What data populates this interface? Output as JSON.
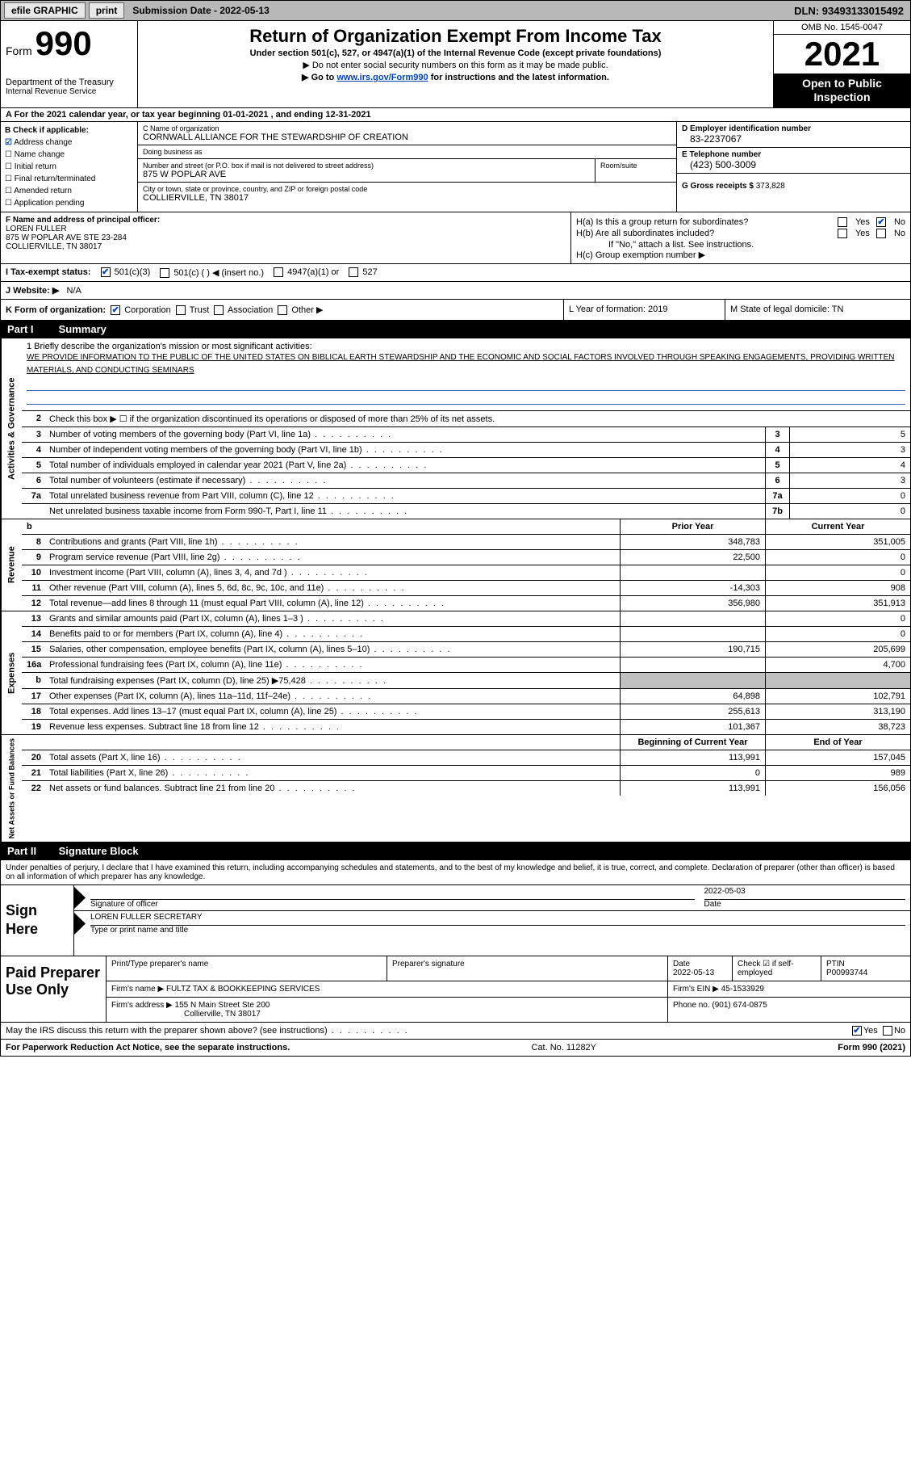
{
  "topbar": {
    "efile": "efile GRAPHIC",
    "print": "print",
    "subdate": "Submission Date - 2022-05-13",
    "dln": "DLN: 93493133015492"
  },
  "header": {
    "form_label": "Form",
    "form_num": "990",
    "dept": "Department of the Treasury",
    "irs": "Internal Revenue Service",
    "title": "Return of Organization Exempt From Income Tax",
    "sub1": "Under section 501(c), 527, or 4947(a)(1) of the Internal Revenue Code (except private foundations)",
    "sub2": "▶ Do not enter social security numbers on this form as it may be made public.",
    "sub3_pre": "▶ Go to ",
    "sub3_link": "www.irs.gov/Form990",
    "sub3_post": " for instructions and the latest information.",
    "omb": "OMB No. 1545-0047",
    "year": "2021",
    "otp": "Open to Public Inspection"
  },
  "rowA": "A For the 2021 calendar year, or tax year beginning 01-01-2021    , and ending 12-31-2021",
  "colB": {
    "head": "B Check if applicable:",
    "items": [
      "Address change",
      "Name change",
      "Initial return",
      "Final return/terminated",
      "Amended return",
      "Application pending"
    ],
    "checked_idx": 0
  },
  "colC": {
    "name_lbl": "C Name of organization",
    "name": "CORNWALL ALLIANCE FOR THE STEWARDSHIP OF CREATION",
    "dba_lbl": "Doing business as",
    "dba": "",
    "addr_lbl": "Number and street (or P.O. box if mail is not delivered to street address)",
    "room_lbl": "Room/suite",
    "addr": "875 W POPLAR AVE",
    "city_lbl": "City or town, state or province, country, and ZIP or foreign postal code",
    "city": "COLLIERVILLE, TN  38017"
  },
  "colD": {
    "ein_lbl": "D Employer identification number",
    "ein": "83-2237067",
    "phone_lbl": "E Telephone number",
    "phone": "(423) 500-3009",
    "gross_lbl": "G Gross receipts $",
    "gross": "373,828"
  },
  "rowF": {
    "lbl": "F Name and address of principal officer:",
    "name": "LOREN FULLER",
    "addr1": "875 W POPLAR AVE STE 23-284",
    "addr2": "COLLIERVILLE, TN  38017"
  },
  "rowH": {
    "h_a": "H(a)  Is this a group return for subordinates?",
    "h_b": "H(b)  Are all subordinates included?",
    "h_note": "If \"No,\" attach a list. See instructions.",
    "h_c": "H(c)  Group exemption number ▶",
    "yes": "Yes",
    "no": "No"
  },
  "rowI": {
    "lbl": "I    Tax-exempt status:",
    "o1": "501(c)(3)",
    "o2": "501(c) (  ) ◀ (insert no.)",
    "o3": "4947(a)(1) or",
    "o4": "527"
  },
  "rowJ": {
    "lbl": "J   Website: ▶",
    "val": "N/A"
  },
  "rowK": {
    "lbl": "K Form of organization:",
    "o1": "Corporation",
    "o2": "Trust",
    "o3": "Association",
    "o4": "Other ▶",
    "l": "L Year of formation: 2019",
    "m": "M State of legal domicile: TN"
  },
  "part1": {
    "num": "Part I",
    "title": "Summary"
  },
  "mission": {
    "lbl": "1  Briefly describe the organization's mission or most significant activities:",
    "txt": "WE PROVIDE INFORMATION TO THE PUBLIC OF THE UNITED STATES ON BIBLICAL EARTH STEWARDSHIP AND THE ECONOMIC AND SOCIAL FACTORS INVOLVED THROUGH SPEAKING ENGAGEMENTS, PROVIDING WRITTEN MATERIALS, AND CONDUCTING SEMINARS"
  },
  "gov_lines": [
    {
      "n": "2",
      "d": "Check this box ▶ ☐ if the organization discontinued its operations or disposed of more than 25% of its net assets."
    },
    {
      "n": "3",
      "d": "Number of voting members of the governing body (Part VI, line 1a)",
      "box": "3",
      "v": "5"
    },
    {
      "n": "4",
      "d": "Number of independent voting members of the governing body (Part VI, line 1b)",
      "box": "4",
      "v": "3"
    },
    {
      "n": "5",
      "d": "Total number of individuals employed in calendar year 2021 (Part V, line 2a)",
      "box": "5",
      "v": "4"
    },
    {
      "n": "6",
      "d": "Total number of volunteers (estimate if necessary)",
      "box": "6",
      "v": "3"
    },
    {
      "n": "7a",
      "d": "Total unrelated business revenue from Part VIII, column (C), line 12",
      "box": "7a",
      "v": "0"
    },
    {
      "n": "",
      "d": "Net unrelated business taxable income from Form 990-T, Part I, line 11",
      "box": "7b",
      "v": "0"
    }
  ],
  "section_labels": {
    "gov": "Activities & Governance",
    "rev": "Revenue",
    "exp": "Expenses",
    "net": "Net Assets or Fund Balances",
    "b_head": "b",
    "prior": "Prior Year",
    "current": "Current Year",
    "begin": "Beginning of Current Year",
    "end": "End of Year"
  },
  "rev_lines": [
    {
      "n": "8",
      "d": "Contributions and grants (Part VIII, line 1h)",
      "p": "348,783",
      "c": "351,005"
    },
    {
      "n": "9",
      "d": "Program service revenue (Part VIII, line 2g)",
      "p": "22,500",
      "c": "0"
    },
    {
      "n": "10",
      "d": "Investment income (Part VIII, column (A), lines 3, 4, and 7d )",
      "p": "",
      "c": "0"
    },
    {
      "n": "11",
      "d": "Other revenue (Part VIII, column (A), lines 5, 6d, 8c, 9c, 10c, and 11e)",
      "p": "-14,303",
      "c": "908"
    },
    {
      "n": "12",
      "d": "Total revenue—add lines 8 through 11 (must equal Part VIII, column (A), line 12)",
      "p": "356,980",
      "c": "351,913"
    }
  ],
  "exp_lines": [
    {
      "n": "13",
      "d": "Grants and similar amounts paid (Part IX, column (A), lines 1–3 )",
      "p": "",
      "c": "0"
    },
    {
      "n": "14",
      "d": "Benefits paid to or for members (Part IX, column (A), line 4)",
      "p": "",
      "c": "0"
    },
    {
      "n": "15",
      "d": "Salaries, other compensation, employee benefits (Part IX, column (A), lines 5–10)",
      "p": "190,715",
      "c": "205,699"
    },
    {
      "n": "16a",
      "d": "Professional fundraising fees (Part IX, column (A), line 11e)",
      "p": "",
      "c": "4,700"
    },
    {
      "n": "b",
      "d": "Total fundraising expenses (Part IX, column (D), line 25) ▶75,428",
      "p": "shade",
      "c": "shade"
    },
    {
      "n": "17",
      "d": "Other expenses (Part IX, column (A), lines 11a–11d, 11f–24e)",
      "p": "64,898",
      "c": "102,791"
    },
    {
      "n": "18",
      "d": "Total expenses. Add lines 13–17 (must equal Part IX, column (A), line 25)",
      "p": "255,613",
      "c": "313,190"
    },
    {
      "n": "19",
      "d": "Revenue less expenses. Subtract line 18 from line 12",
      "p": "101,367",
      "c": "38,723"
    }
  ],
  "net_lines": [
    {
      "n": "20",
      "d": "Total assets (Part X, line 16)",
      "p": "113,991",
      "c": "157,045"
    },
    {
      "n": "21",
      "d": "Total liabilities (Part X, line 26)",
      "p": "0",
      "c": "989"
    },
    {
      "n": "22",
      "d": "Net assets or fund balances. Subtract line 21 from line 20",
      "p": "113,991",
      "c": "156,056"
    }
  ],
  "part2": {
    "num": "Part II",
    "title": "Signature Block"
  },
  "penalties": "Under penalties of perjury, I declare that I have examined this return, including accompanying schedules and statements, and to the best of my knowledge and belief, it is true, correct, and complete. Declaration of preparer (other than officer) is based on all information of which preparer has any knowledge.",
  "sign": {
    "here": "Sign Here",
    "sig_lbl": "Signature of officer",
    "date": "2022-05-03",
    "date_lbl": "Date",
    "name": "LOREN FULLER  SECRETARY",
    "name_lbl": "Type or print name and title"
  },
  "paid": {
    "here": "Paid Preparer Use Only",
    "pname_lbl": "Print/Type preparer's name",
    "psig_lbl": "Preparer's signature",
    "pdate_lbl": "Date",
    "pdate": "2022-05-13",
    "pcheck_lbl": "Check ☑ if self-employed",
    "ptin_lbl": "PTIN",
    "ptin": "P00993744",
    "firm_lbl": "Firm's name    ▶",
    "firm": "FULTZ TAX & BOOKKEEPING SERVICES",
    "fein_lbl": "Firm's EIN ▶",
    "fein": "45-1533929",
    "faddr_lbl": "Firm's address ▶",
    "faddr1": "155 N Main Street Ste 200",
    "faddr2": "Collierville, TN  38017",
    "fphone_lbl": "Phone no.",
    "fphone": "(901) 674-0875"
  },
  "discuss": {
    "q": "May the IRS discuss this return with the preparer shown above? (see instructions)",
    "yes": "Yes",
    "no": "No"
  },
  "footer": {
    "l": "For Paperwork Reduction Act Notice, see the separate instructions.",
    "c": "Cat. No. 11282Y",
    "r": "Form 990 (2021)"
  }
}
